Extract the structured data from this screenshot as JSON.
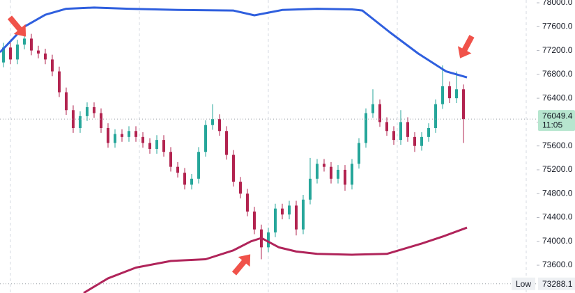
{
  "chart_data": {
    "type": "candlestick",
    "open": [
      77000,
      77250,
      77050,
      77300,
      77400,
      77200,
      77150,
      77050,
      76850,
      76500,
      76200,
      75900,
      76100,
      76250,
      76150,
      75900,
      75650,
      75800,
      75750,
      75850,
      75750,
      75650,
      75550,
      75700,
      75500,
      75250,
      75150,
      74950,
      75050,
      75500,
      75950,
      76050,
      75850,
      75450,
      75000,
      74800,
      74500,
      74200,
      73900,
      74150,
      74550,
      74450,
      74600,
      74200,
      74700,
      75050,
      75300,
      75250,
      75050,
      75200,
      74950,
      75300,
      75650,
      76150,
      76300,
      76000,
      75850,
      75700,
      76000,
      75750,
      75600,
      75750,
      75900,
      76300,
      76600,
      76400,
      76550
    ],
    "high": [
      77330,
      77330,
      77380,
      77480,
      77480,
      77280,
      77230,
      77130,
      76930,
      76580,
      76280,
      76180,
      76330,
      76330,
      76230,
      75980,
      75880,
      75880,
      75930,
      75930,
      75830,
      75730,
      75780,
      75780,
      75580,
      75330,
      75230,
      75130,
      75580,
      76030,
      76300,
      76130,
      75930,
      75530,
      75080,
      74880,
      74580,
      74280,
      74230,
      74630,
      74630,
      74680,
      74680,
      74780,
      75400,
      75380,
      75380,
      75330,
      75280,
      75280,
      75380,
      75730,
      76230,
      76550,
      76380,
      76080,
      75930,
      76200,
      76080,
      75830,
      75830,
      75980,
      76380,
      76950,
      76680,
      76850,
      76630
    ],
    "low": [
      76920,
      76970,
      76970,
      77220,
      77120,
      77070,
      76970,
      76770,
      76420,
      76120,
      75820,
      75820,
      76020,
      76070,
      75820,
      75570,
      75570,
      75670,
      75670,
      75670,
      75570,
      75470,
      75470,
      75420,
      75170,
      75070,
      74870,
      74870,
      74970,
      75420,
      75870,
      75770,
      75370,
      74920,
      74720,
      74420,
      74120,
      73700,
      73820,
      74070,
      74370,
      74370,
      74100,
      74120,
      74620,
      74970,
      75170,
      74970,
      74970,
      74850,
      74870,
      75220,
      75570,
      76070,
      75920,
      75770,
      75620,
      75620,
      75670,
      75500,
      75520,
      75670,
      75820,
      76220,
      76320,
      76320,
      75650
    ],
    "close": [
      77250,
      77050,
      77300,
      77400,
      77200,
      77150,
      77050,
      76850,
      76500,
      76200,
      75900,
      76100,
      76250,
      76150,
      75900,
      75650,
      75800,
      75750,
      75850,
      75750,
      75650,
      75550,
      75700,
      75500,
      75250,
      75150,
      74950,
      75050,
      75500,
      75950,
      76050,
      75850,
      75450,
      75000,
      74800,
      74500,
      74200,
      73900,
      74150,
      74550,
      74450,
      74600,
      74200,
      74700,
      75050,
      75300,
      75250,
      75050,
      75200,
      74950,
      75300,
      75650,
      76150,
      76300,
      76000,
      75850,
      75700,
      76000,
      75750,
      75600,
      75750,
      75900,
      76300,
      76600,
      76400,
      76550,
      76049
    ],
    "up_color": "#26a69a",
    "down_color": "#b2234f",
    "bands": [
      {
        "color": "#2f5fde",
        "x": [
          -0.5,
          3,
          6,
          9,
          13,
          18,
          25,
          33,
          36,
          40,
          45,
          50,
          51.5,
          55.5,
          59.5,
          63.5,
          66.5
        ],
        "values": [
          77170,
          77600,
          77800,
          77900,
          77920,
          77900,
          77880,
          77870,
          77790,
          77880,
          77900,
          77890,
          77870,
          77500,
          77150,
          76850,
          76750
        ]
      },
      {
        "color": "#b0245a",
        "x": [
          11.5,
          15,
          19,
          24,
          29,
          33,
          35.5,
          37,
          39.5,
          42,
          45,
          50,
          55,
          60,
          63,
          66.5
        ],
        "values": [
          73134,
          73380,
          73560,
          73671,
          73700,
          73850,
          74000,
          74056,
          73900,
          73830,
          73790,
          73776,
          73790,
          73963,
          74080,
          74230
        ]
      }
    ],
    "ylim": [
      73134,
      78047
    ],
    "yticks": [
      {
        "value": 73600,
        "label": "73600.0"
      },
      {
        "value": 74000,
        "label": "74000.0"
      },
      {
        "value": 74400,
        "label": "74400.0"
      },
      {
        "value": 74800,
        "label": "74800.0"
      },
      {
        "value": 75200,
        "label": "75200.0"
      },
      {
        "value": 75600,
        "label": "75600.0"
      },
      {
        "value": 76000,
        "label": "76000.0"
      },
      {
        "value": 76400,
        "label": "76400.0"
      },
      {
        "value": 76800,
        "label": "76800.0"
      },
      {
        "value": 77200,
        "label": "77200.0"
      },
      {
        "value": 77600,
        "label": "77600.0"
      },
      {
        "value": 78000,
        "label": "78000.0"
      }
    ],
    "last_price": {
      "value": 76049.4,
      "label": "76049.4"
    },
    "countdown": "11:05",
    "low_label": "Low",
    "low_value": {
      "value": 73288.1,
      "label": "73288.1"
    }
  }
}
